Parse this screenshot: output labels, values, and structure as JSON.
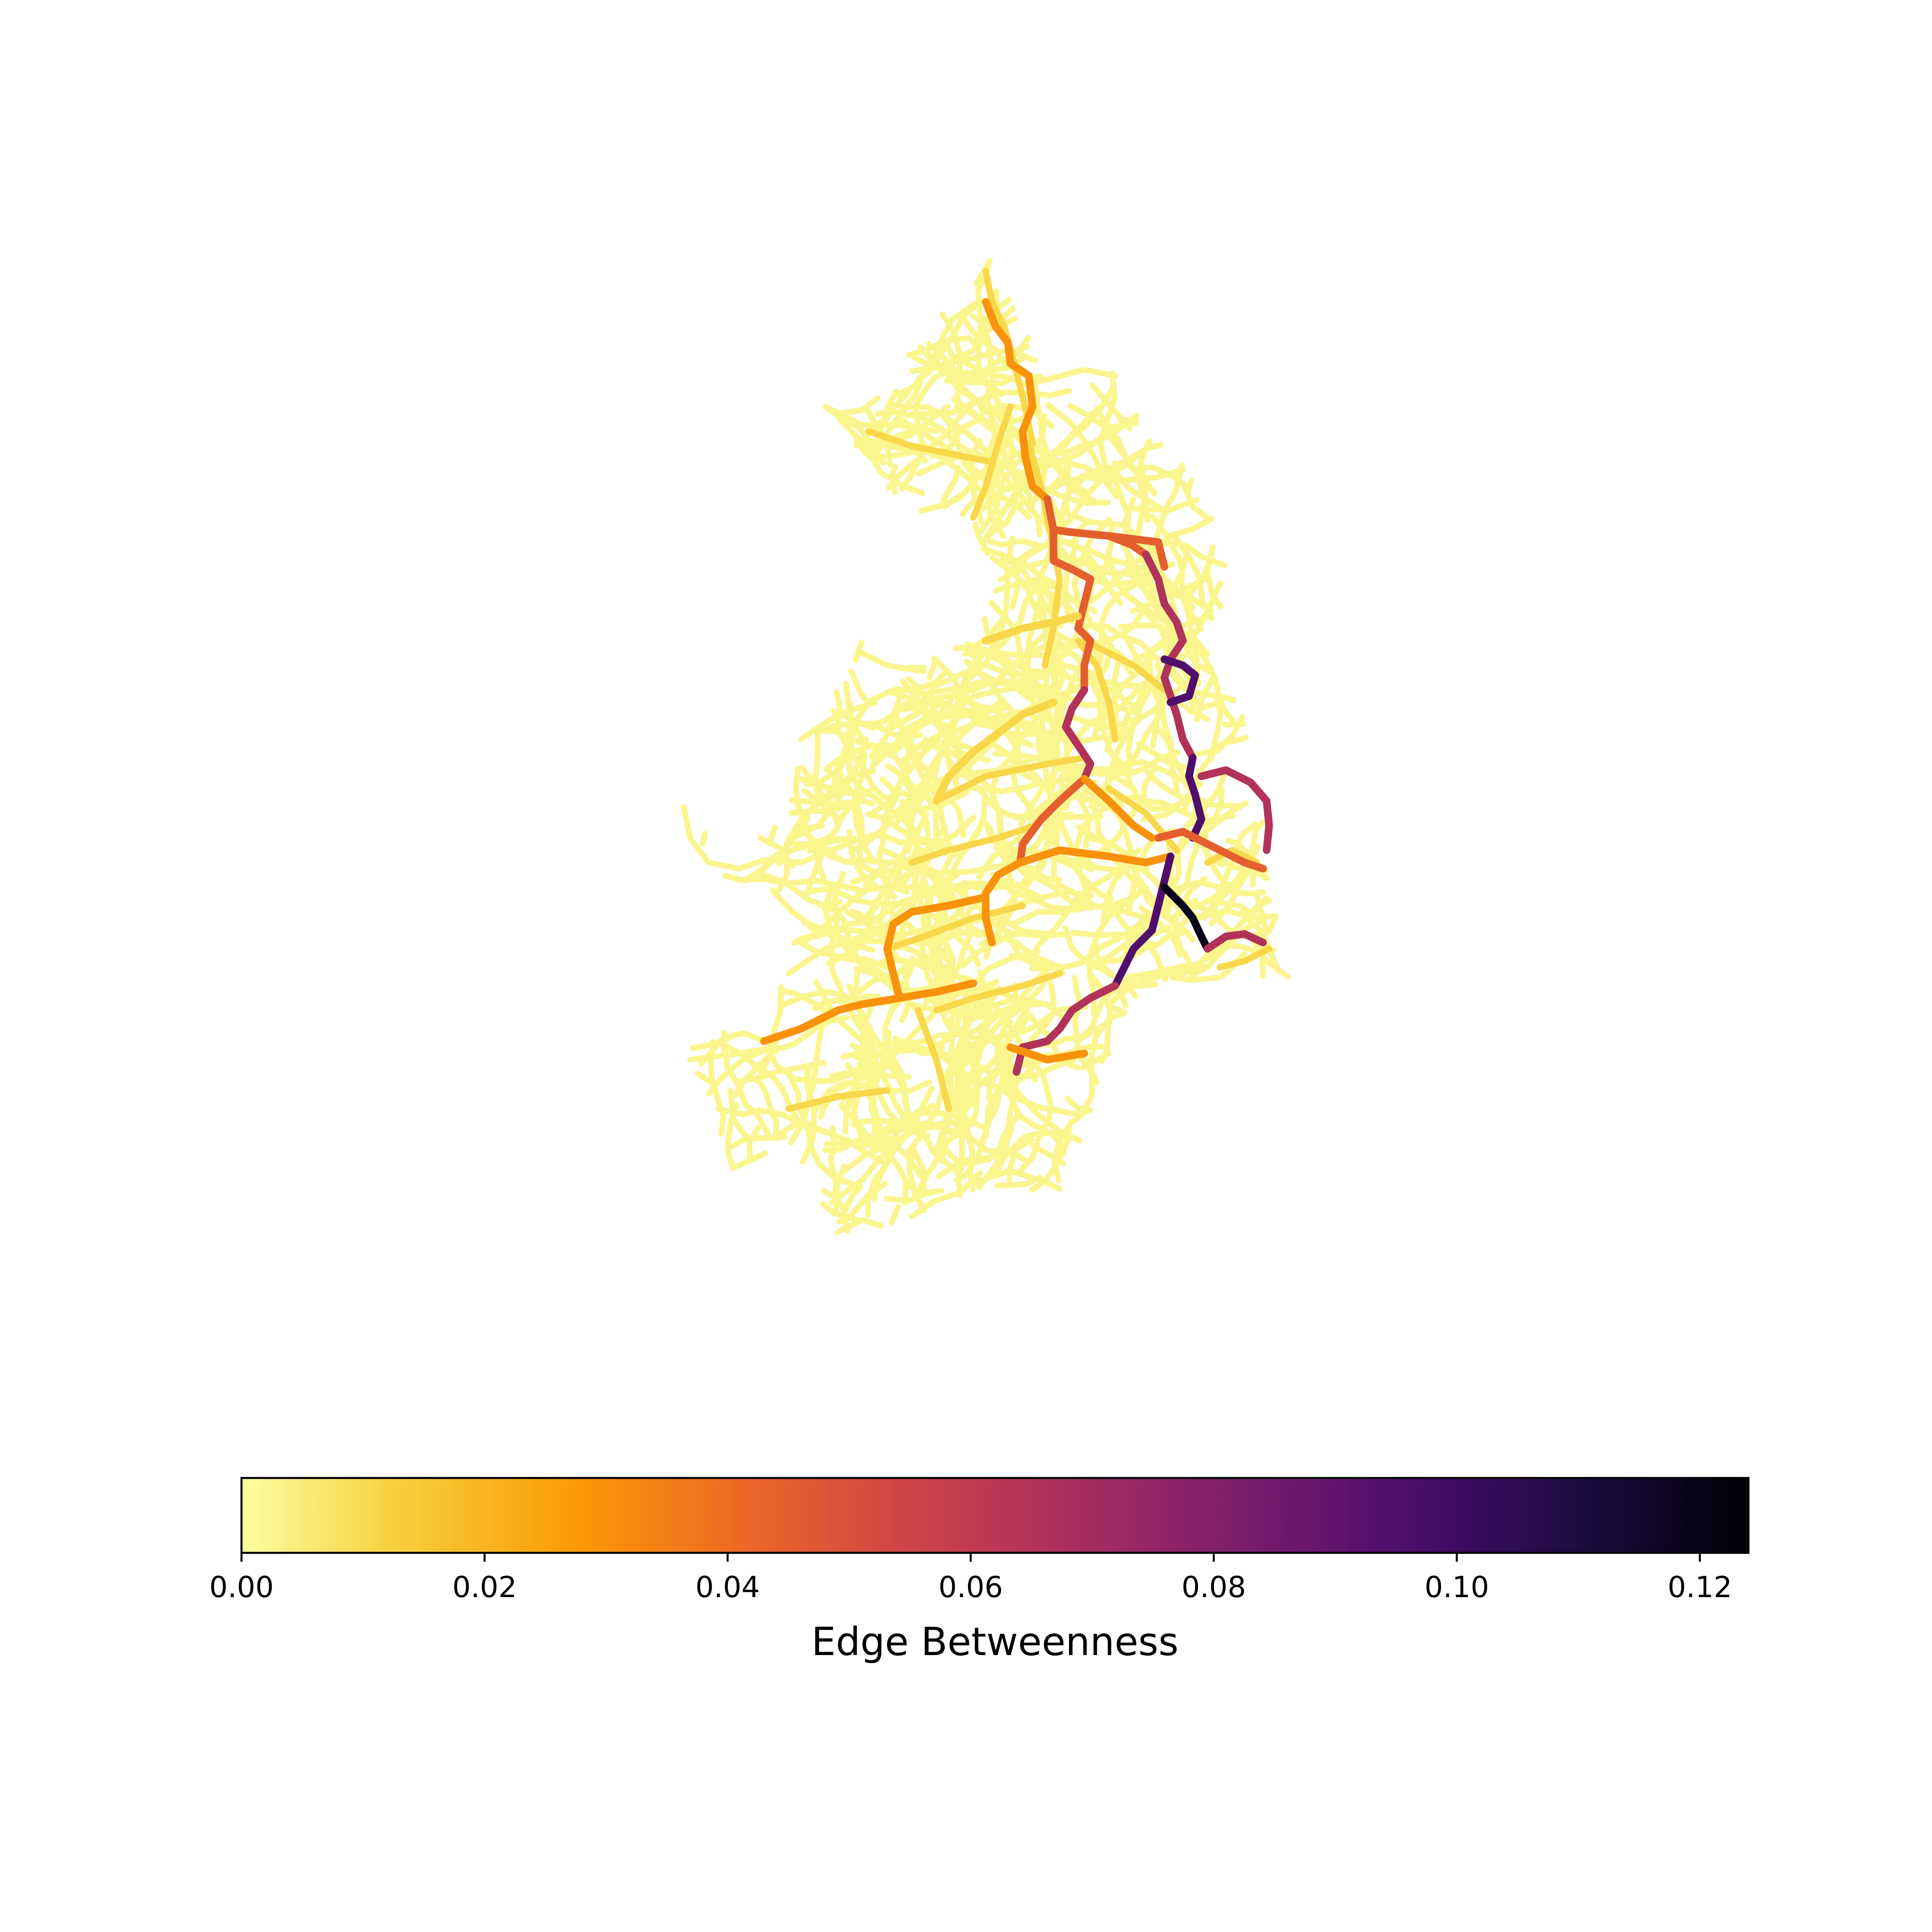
{
  "chart_data": {
    "type": "network-map",
    "colormap": "inferno_r",
    "colorbar": {
      "label": "Edge Betweenness",
      "range": [
        0,
        0.124
      ],
      "ticks": [
        "0.00",
        "0.02",
        "0.04",
        "0.06",
        "0.08",
        "0.10",
        "0.12"
      ],
      "tick_values": [
        0,
        0.02,
        0.04,
        0.06,
        0.08,
        0.1,
        0.12
      ],
      "orientation": "horizontal",
      "placement": "bottom"
    },
    "color_stops": [
      "#fcffa4",
      "#f7d13d",
      "#fb9b06",
      "#ed6925",
      "#cf4446",
      "#a52c60",
      "#781c6d",
      "#4a0c6b",
      "#1b0c41",
      "#000004"
    ],
    "edge_betweenness_levels": {
      "background": 0.003,
      "minor": 0.012,
      "medium": 0.03,
      "high": 0.045,
      "very_high": 0.065,
      "peak": 0.095,
      "max": 0.12
    }
  }
}
